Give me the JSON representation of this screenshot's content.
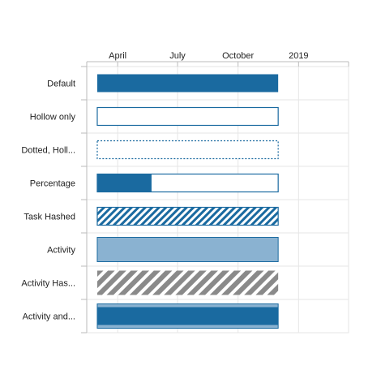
{
  "chart_data": {
    "type": "gantt",
    "x_axis": {
      "position": "top",
      "ticks": [
        "April",
        "July",
        "October",
        "2019"
      ],
      "tick_dates": [
        "2018-04-01",
        "2018-07-01",
        "2018-10-01",
        "2019-01-01"
      ],
      "range": [
        "2018-02-13",
        "2019-03-18"
      ]
    },
    "grid": true,
    "rows": [
      {
        "label": "Default",
        "style": "solid",
        "start": "2018-03-01",
        "end": "2018-12-01"
      },
      {
        "label": "Hollow only",
        "style": "hollow",
        "start": "2018-03-01",
        "end": "2018-12-01"
      },
      {
        "label": "Dotted, Holl...",
        "style": "dotted-hollow",
        "start": "2018-03-01",
        "end": "2018-12-01"
      },
      {
        "label": "Percentage",
        "style": "percentage",
        "start": "2018-03-01",
        "end": "2018-12-01",
        "percent_complete": 30
      },
      {
        "label": "Task Hashed",
        "style": "task-hashed",
        "start": "2018-03-01",
        "end": "2018-12-01"
      },
      {
        "label": "Activity",
        "style": "activity",
        "start": "2018-03-01",
        "end": "2018-12-01"
      },
      {
        "label": "Activity Has...",
        "style": "activity-hashed",
        "start": "2018-03-01",
        "end": "2018-12-01"
      },
      {
        "label": "Activity and...",
        "style": "activity-and-task",
        "start": "2018-03-01",
        "end": "2018-12-01"
      }
    ],
    "colors": {
      "primary": "#1a6aa0",
      "light": "#8ab2d1",
      "gray_hatch": "#8a8a8a",
      "grid": "#e6e6e6",
      "axis": "#bbbbbb"
    }
  }
}
